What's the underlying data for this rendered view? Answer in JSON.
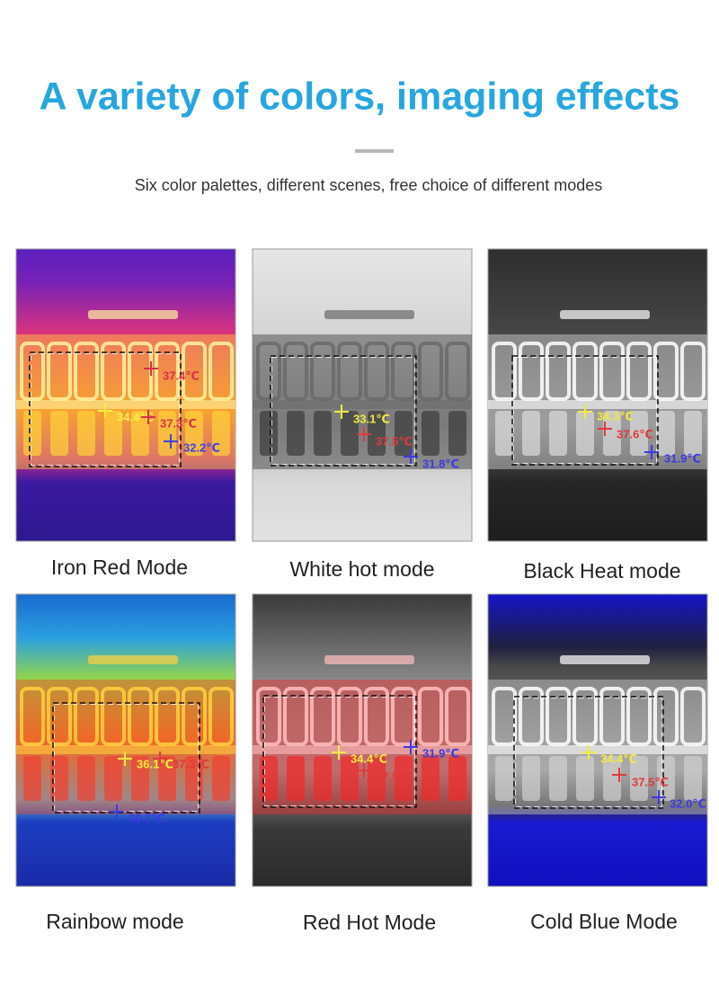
{
  "header": {
    "title": "A variety of colors, imaging effects",
    "subtitle": "Six color palettes, different scenes, free choice of different modes"
  },
  "panels": [
    {
      "label": "Iron Red Mode",
      "readings": [
        "37.4℃",
        "34.4℃",
        "37.3℃",
        "32.2℃"
      ]
    },
    {
      "label": "White hot mode",
      "readings": [
        "33.1℃",
        "37.5℃",
        "31.8℃"
      ]
    },
    {
      "label": "Black Heat mode",
      "readings": [
        "34.3℃",
        "37.6℃",
        "31.9℃"
      ]
    },
    {
      "label": "Rainbow mode",
      "readings": [
        "36.1℃",
        "37.3℃",
        "30.7℃"
      ]
    },
    {
      "label": "Red Hot Mode",
      "readings": [
        "34.4℃",
        "31.9℃",
        "37.5℃"
      ]
    },
    {
      "label": "Cold Blue Mode",
      "readings": [
        "34.4℃",
        "37.5℃",
        "32.0℃"
      ]
    }
  ]
}
